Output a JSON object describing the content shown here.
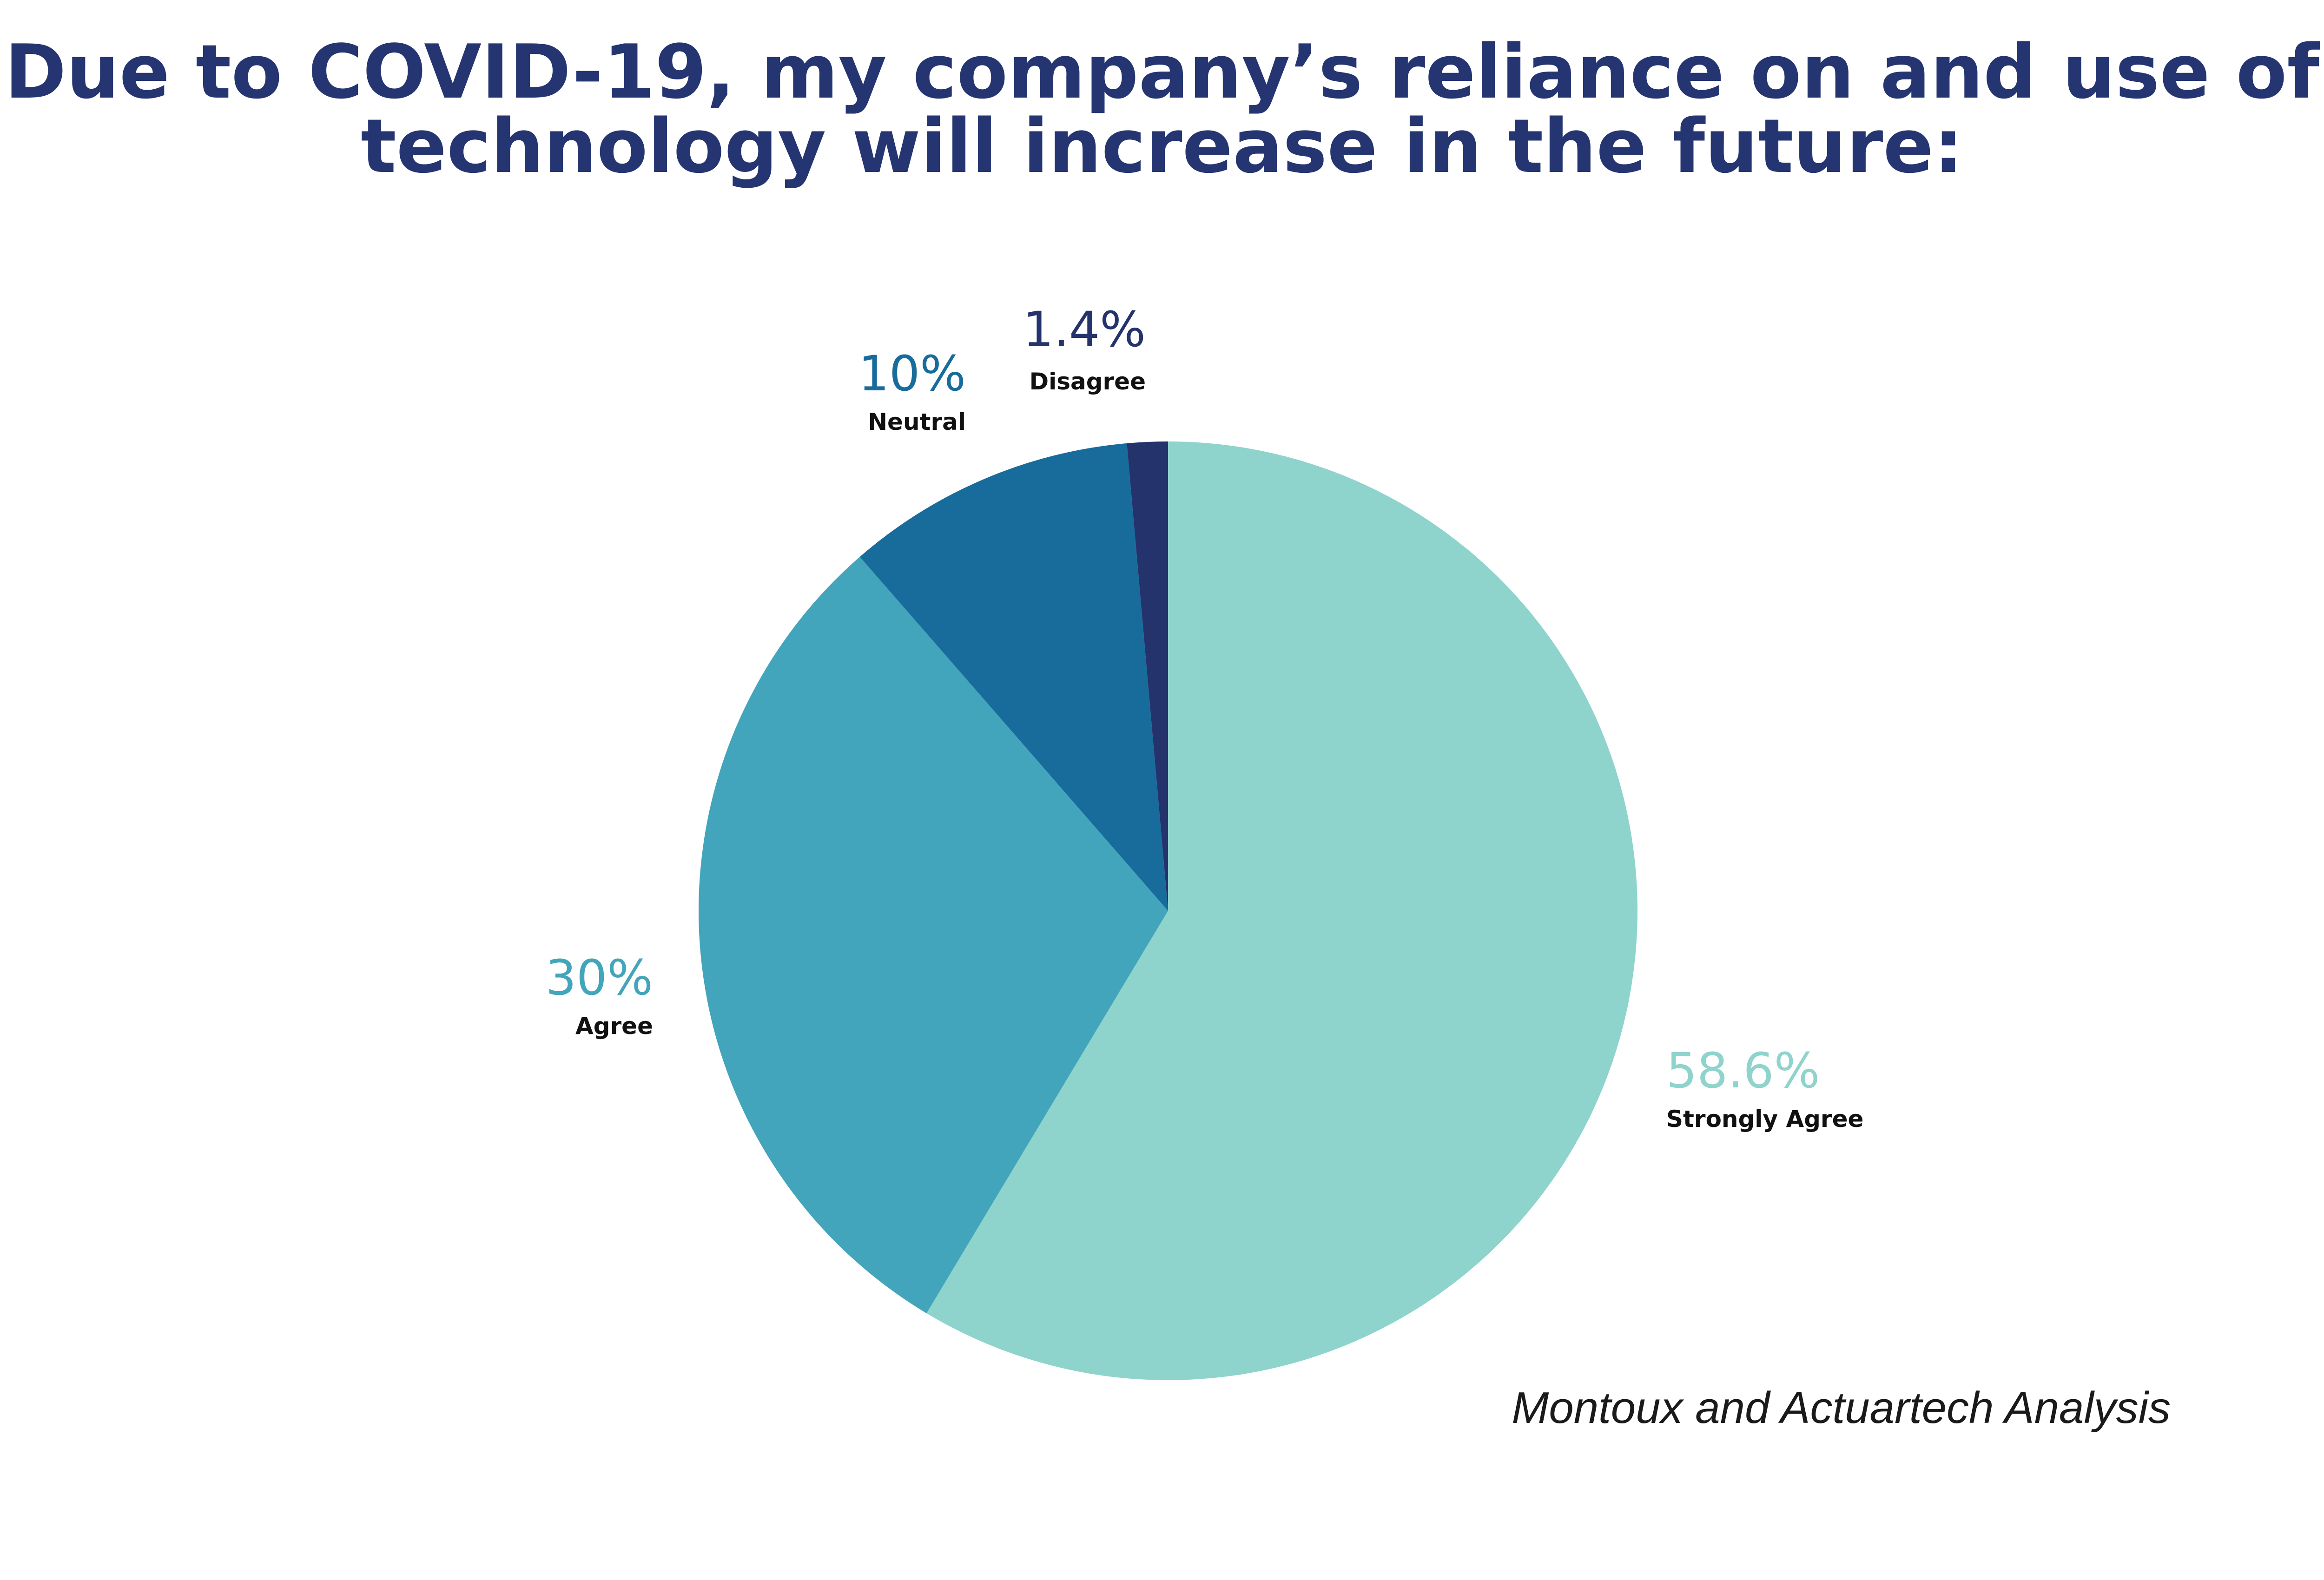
{
  "chart_data": {
    "type": "pie",
    "title_lines": [
      "Due to COVID-19, my company’s reliance on and use of",
      "technology will increase in the future:"
    ],
    "start_angle_deg": 0,
    "direction": "clockwise",
    "slices": [
      {
        "label": "Strongly Agree",
        "value": 58.6,
        "pct_label": "58.6%",
        "color": "#8fd3cd"
      },
      {
        "label": "Agree",
        "value": 30,
        "pct_label": "30%",
        "color": "#43a5bc"
      },
      {
        "label": "Neutral",
        "value": 10,
        "pct_label": "10%",
        "color": "#186c9c"
      },
      {
        "label": "Disagree",
        "value": 1.4,
        "pct_label": "1.4%",
        "color": "#25336d"
      }
    ],
    "source": "Montoux and Actuartech Analysis"
  }
}
